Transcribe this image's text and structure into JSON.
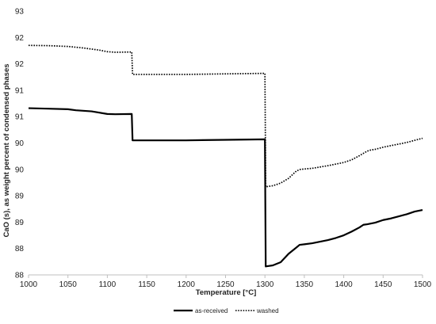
{
  "chart_data": {
    "type": "line",
    "title": "",
    "xlabel": "Temperature [°C]",
    "ylabel": "CaO (s), as weight percent of condensed phases",
    "xlim": [
      1000,
      1500
    ],
    "ylim": [
      88.0,
      93.0
    ],
    "grid": false,
    "legend_position": "bottom",
    "x_ticks": [
      "1000",
      "1050",
      "1100",
      "1150",
      "1200",
      "1250",
      "1300",
      "1350",
      "1400",
      "1450",
      "1500"
    ],
    "y_ticks": [
      "93",
      "92",
      "92",
      "91",
      "91",
      "90",
      "90",
      "89",
      "89",
      "88",
      "88"
    ],
    "series": [
      {
        "name": "as-received",
        "style": "solid",
        "color": "#000000",
        "points": [
          [
            1000,
            91.16
          ],
          [
            1025,
            91.15
          ],
          [
            1050,
            91.14
          ],
          [
            1060,
            91.12
          ],
          [
            1080,
            91.1
          ],
          [
            1100,
            91.05
          ],
          [
            1110,
            91.045
          ],
          [
            1131,
            91.05
          ],
          [
            1132,
            90.55
          ],
          [
            1150,
            90.55
          ],
          [
            1200,
            90.55
          ],
          [
            1250,
            90.56
          ],
          [
            1300,
            90.57
          ],
          [
            1301,
            88.16
          ],
          [
            1310,
            88.18
          ],
          [
            1320,
            88.24
          ],
          [
            1330,
            88.4
          ],
          [
            1340,
            88.52
          ],
          [
            1344,
            88.57
          ],
          [
            1350,
            88.58
          ],
          [
            1360,
            88.6
          ],
          [
            1370,
            88.63
          ],
          [
            1380,
            88.66
          ],
          [
            1390,
            88.7
          ],
          [
            1400,
            88.75
          ],
          [
            1410,
            88.82
          ],
          [
            1420,
            88.9
          ],
          [
            1425,
            88.95
          ],
          [
            1430,
            88.96
          ],
          [
            1440,
            88.99
          ],
          [
            1450,
            89.04
          ],
          [
            1460,
            89.07
          ],
          [
            1470,
            89.11
          ],
          [
            1480,
            89.15
          ],
          [
            1490,
            89.2
          ],
          [
            1500,
            89.23
          ]
        ]
      },
      {
        "name": "washed",
        "style": "dotted",
        "color": "#000000",
        "points": [
          [
            1000,
            92.35
          ],
          [
            1025,
            92.345
          ],
          [
            1050,
            92.33
          ],
          [
            1070,
            92.3
          ],
          [
            1090,
            92.26
          ],
          [
            1100,
            92.23
          ],
          [
            1110,
            92.22
          ],
          [
            1131,
            92.225
          ],
          [
            1132,
            91.8
          ],
          [
            1150,
            91.8
          ],
          [
            1200,
            91.8
          ],
          [
            1250,
            91.81
          ],
          [
            1300,
            91.82
          ],
          [
            1301,
            89.67
          ],
          [
            1310,
            89.69
          ],
          [
            1320,
            89.74
          ],
          [
            1330,
            89.83
          ],
          [
            1340,
            89.97
          ],
          [
            1345,
            90.0
          ],
          [
            1360,
            90.02
          ],
          [
            1380,
            90.07
          ],
          [
            1390,
            90.1
          ],
          [
            1400,
            90.13
          ],
          [
            1410,
            90.18
          ],
          [
            1420,
            90.26
          ],
          [
            1428,
            90.33
          ],
          [
            1432,
            90.36
          ],
          [
            1440,
            90.38
          ],
          [
            1450,
            90.42
          ],
          [
            1460,
            90.45
          ],
          [
            1470,
            90.48
          ],
          [
            1480,
            90.51
          ],
          [
            1490,
            90.55
          ],
          [
            1500,
            90.59
          ]
        ]
      }
    ]
  }
}
